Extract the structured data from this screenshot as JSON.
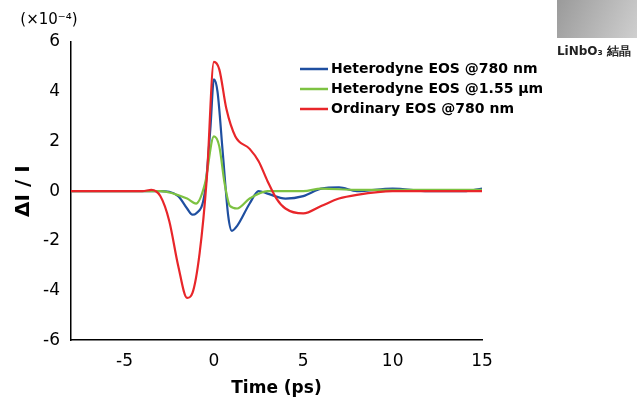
{
  "chart_data": {
    "type": "line",
    "x_label": "Time (ps)",
    "y_label": "ΔI / I",
    "annotations": [
      {
        "text": "(×10⁻⁴)"
      },
      {
        "text": "LiNbO₃ 結晶"
      }
    ],
    "xlim": [
      -8,
      15
    ],
    "xticks": [
      -5,
      0,
      5,
      10,
      15
    ],
    "ylim": [
      -6,
      6
    ],
    "yticks": [
      -6,
      -4,
      -2,
      0,
      2,
      4,
      6
    ],
    "grid": false,
    "legend": "upper right",
    "series": [
      {
        "name": "Heterodyne EOS @780 nm",
        "color": "#1f4fa0",
        "x": [
          -8,
          -4,
          -3,
          -2,
          -1.5,
          -1.2,
          -1,
          -0.5,
          -0.2,
          0,
          0.2,
          0.5,
          0.8,
          1,
          1.3,
          2,
          2.5,
          3,
          4,
          5,
          6,
          7,
          8,
          10,
          12,
          14,
          15
        ],
        "values": [
          0,
          0,
          0,
          -0.2,
          -0.7,
          -0.95,
          -0.9,
          0,
          2.5,
          4.5,
          4,
          1.5,
          -1,
          -1.6,
          -1.4,
          -0.5,
          0,
          -0.1,
          -0.3,
          -0.2,
          0.1,
          0.15,
          0,
          0.1,
          0,
          0,
          0.1
        ]
      },
      {
        "name": "Heterodyne EOS @1.55 µm",
        "color": "#7dc242",
        "x": [
          -8,
          -4,
          -3,
          -1.5,
          -1,
          -0.5,
          0,
          0.3,
          0.6,
          0.9,
          1.3,
          2,
          3,
          5,
          6,
          8,
          15
        ],
        "values": [
          0,
          0,
          0,
          -0.3,
          -0.5,
          0.3,
          2.2,
          1.8,
          0.3,
          -0.6,
          -0.7,
          -0.3,
          0,
          0,
          0.1,
          0.05,
          0.05
        ]
      },
      {
        "name": "Ordinary EOS @780 nm",
        "color": "#e8262a",
        "x": [
          -8,
          -4,
          -3.5,
          -3,
          -2.5,
          -2,
          -1.5,
          -1.2,
          -0.8,
          -0.4,
          0,
          0.3,
          0.7,
          1.2,
          2,
          2.5,
          3,
          3.5,
          4,
          5,
          6,
          7,
          8,
          10,
          12,
          15
        ],
        "values": [
          0,
          0,
          0.05,
          -0.2,
          -1.2,
          -3,
          -4.3,
          -4.1,
          -2.5,
          0.5,
          5.2,
          4.9,
          3.3,
          2.2,
          1.7,
          1.2,
          0.4,
          -0.3,
          -0.7,
          -0.9,
          -0.6,
          -0.3,
          -0.15,
          0,
          0,
          0
        ]
      }
    ]
  }
}
